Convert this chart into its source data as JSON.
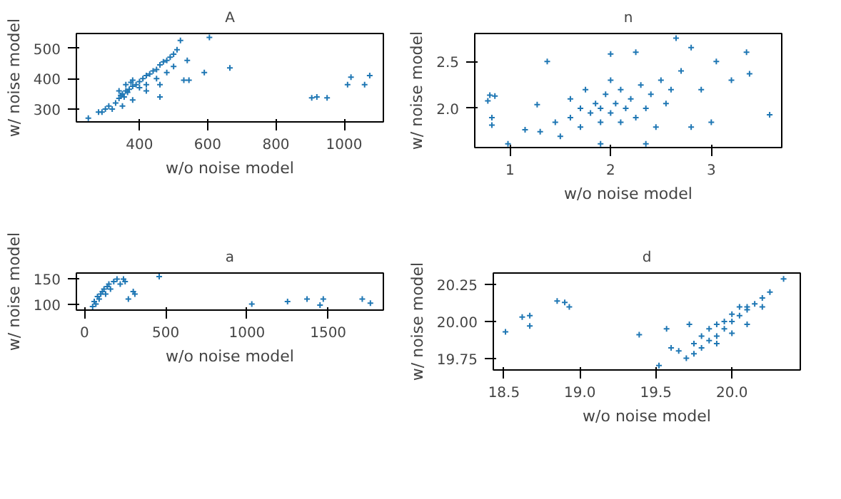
{
  "chart_data": [
    {
      "type": "scatter",
      "title": "A",
      "xlabel": "w/o noise model",
      "ylabel": "w/ noise model",
      "color": "#1f77b4",
      "marker": "cross",
      "grid": false,
      "xlim": [
        215,
        1115
      ],
      "ylim": [
        258,
        548
      ],
      "xticks": [
        400,
        600,
        800,
        1000
      ],
      "yticks": [
        300,
        400,
        500
      ],
      "x": [
        330,
        340,
        345,
        350,
        355,
        360,
        365,
        370,
        375,
        380,
        390,
        400,
        410,
        420,
        430,
        440,
        450,
        460,
        470,
        480,
        490,
        500,
        510,
        520,
        340,
        360,
        380,
        400,
        420,
        450,
        480,
        310,
        300,
        280,
        350,
        380,
        420,
        460,
        500,
        540,
        250,
        290,
        320,
        460,
        530,
        545,
        590,
        605,
        665,
        905,
        920,
        950,
        1010,
        1020,
        1060,
        1075
      ],
      "values": [
        320,
        335,
        345,
        350,
        340,
        360,
        355,
        365,
        388,
        375,
        380,
        390,
        400,
        410,
        415,
        425,
        430,
        445,
        455,
        460,
        470,
        480,
        495,
        525,
        360,
        380,
        395,
        370,
        380,
        400,
        420,
        310,
        300,
        290,
        310,
        330,
        360,
        380,
        440,
        460,
        270,
        290,
        300,
        340,
        395,
        395,
        420,
        535,
        435,
        337,
        340,
        337,
        380,
        405,
        380,
        410
      ]
    },
    {
      "type": "scatter",
      "title": "n",
      "xlabel": "w/o noise model",
      "ylabel": "w/ noise model",
      "color": "#1f77b4",
      "marker": "cross",
      "grid": false,
      "xlim": [
        0.65,
        3.7
      ],
      "ylim": [
        1.58,
        2.8
      ],
      "xticks": [
        1,
        2,
        3
      ],
      "yticks": [
        {
          "value": 2,
          "label": "2.0"
        },
        2.5
      ],
      "x": [
        0.78,
        0.8,
        0.85,
        0.82,
        0.82,
        0.98,
        1.15,
        1.27,
        1.37,
        1.3,
        1.45,
        1.5,
        1.6,
        1.6,
        1.7,
        1.7,
        1.75,
        1.8,
        1.85,
        1.9,
        1.9,
        1.95,
        2.0,
        2.0,
        2.05,
        2.1,
        2.1,
        2.15,
        2.2,
        2.25,
        2.3,
        2.35,
        2.4,
        2.45,
        2.5,
        2.55,
        2.6,
        2.65,
        2.7,
        2.8,
        2.8,
        2.9,
        3.0,
        3.05,
        3.2,
        3.35,
        3.38,
        3.58,
        2.35,
        1.9,
        2.0,
        2.25
      ],
      "values": [
        2.08,
        2.14,
        2.13,
        1.9,
        1.82,
        1.62,
        1.77,
        2.04,
        2.5,
        1.75,
        1.85,
        1.7,
        1.9,
        2.1,
        1.8,
        2.0,
        2.2,
        1.95,
        2.05,
        1.85,
        2.0,
        2.15,
        1.95,
        2.3,
        2.05,
        1.85,
        2.2,
        2.0,
        2.1,
        1.9,
        2.25,
        2.0,
        2.15,
        1.8,
        2.3,
        2.05,
        2.2,
        2.75,
        2.4,
        2.65,
        1.8,
        2.2,
        1.85,
        2.5,
        2.3,
        2.6,
        2.37,
        1.93,
        1.62,
        1.62,
        2.58,
        2.6
      ]
    },
    {
      "type": "scatter",
      "title": "a",
      "xlabel": "w/o noise model",
      "ylabel": "w/ noise model",
      "color": "#1f77b4",
      "marker": "cross",
      "grid": false,
      "xlim": [
        -50,
        1840
      ],
      "ylim": [
        88,
        162
      ],
      "xticks": [
        0,
        500,
        1000,
        1500
      ],
      "yticks": [
        100,
        150
      ],
      "x": [
        50,
        60,
        70,
        80,
        90,
        100,
        110,
        120,
        130,
        140,
        150,
        160,
        180,
        200,
        220,
        240,
        250,
        270,
        300,
        310,
        460,
        1030,
        1250,
        1370,
        1450,
        1470,
        1710,
        1760
      ],
      "values": [
        95,
        105,
        100,
        115,
        110,
        120,
        125,
        130,
        120,
        135,
        140,
        130,
        145,
        150,
        140,
        150,
        145,
        110,
        125,
        120,
        155,
        100,
        105,
        110,
        98,
        110,
        110,
        102
      ]
    },
    {
      "type": "scatter",
      "title": "d",
      "xlabel": "w/o noise model",
      "ylabel": "w/ noise model",
      "color": "#1f77b4",
      "marker": "cross",
      "grid": false,
      "xlim": [
        18.43,
        20.45
      ],
      "ylim": [
        19.67,
        20.33
      ],
      "xticks": [
        18.5,
        {
          "value": 19,
          "label": "19.0"
        },
        19.5,
        {
          "value": 20,
          "label": "20.0"
        }
      ],
      "yticks": [
        19.75,
        {
          "value": 20,
          "label": "20.00"
        },
        20.25
      ],
      "x": [
        18.51,
        18.62,
        18.67,
        18.67,
        18.85,
        18.9,
        18.93,
        19.39,
        19.52,
        19.57,
        19.6,
        19.65,
        19.7,
        19.72,
        19.75,
        19.8,
        19.85,
        19.9,
        19.95,
        20.0,
        20.05,
        20.1,
        20.15,
        20.2,
        20.25,
        20.34,
        19.8,
        19.85,
        19.9,
        19.95,
        20.0,
        20.05,
        20.1,
        19.75,
        19.9,
        20.0,
        20.1,
        20.2
      ],
      "values": [
        19.93,
        20.03,
        20.04,
        19.97,
        20.14,
        20.13,
        20.1,
        19.91,
        19.7,
        19.95,
        19.82,
        19.8,
        19.75,
        19.98,
        19.78,
        19.82,
        19.87,
        19.9,
        19.95,
        20.0,
        20.04,
        20.08,
        20.12,
        20.16,
        20.2,
        20.29,
        19.9,
        19.95,
        19.98,
        20.0,
        20.05,
        20.1,
        20.1,
        19.85,
        19.85,
        19.92,
        19.98,
        20.1
      ]
    }
  ]
}
